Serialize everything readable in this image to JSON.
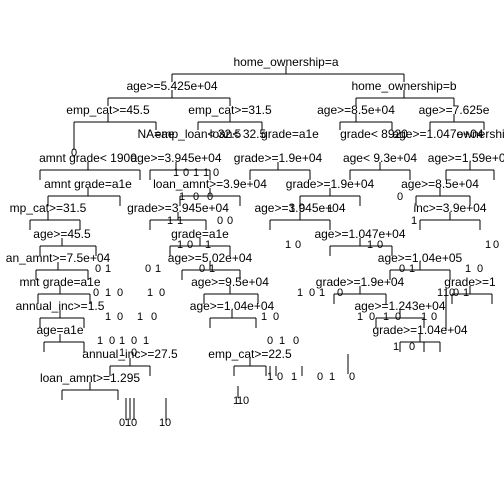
{
  "tree": {
    "nodes": [
      {
        "id": "n_root",
        "text": "home_ownership=a"
      },
      {
        "id": "n_L",
        "text": "age>=5.425e+04"
      },
      {
        "id": "n_R",
        "text": "home_ownership=b"
      },
      {
        "id": "n_LL",
        "text": "emp_cat>=45.5"
      },
      {
        "id": "n_LR",
        "text": "emp_cat>=31.5"
      },
      {
        "id": "n_RL",
        "text": "age>=8.5e+04"
      },
      {
        "id": "n_RR",
        "text": "age>=7.625e"
      },
      {
        "id": "n_LLR",
        "text": "NA=ae"
      },
      {
        "id": "n_LRL",
        "text": "emp_loan< 32.5"
      },
      {
        "id": "n_LRR",
        "text": "loan< 32.5"
      },
      {
        "id": "n_LRR2",
        "text": "grade=a1e"
      },
      {
        "id": "n_RLL",
        "text": "grade< 8920"
      },
      {
        "id": "n_RLR",
        "text": "age>=1.047e+04"
      },
      {
        "id": "n_RRL",
        "text": "ownership"
      },
      {
        "id": "n_r4a",
        "text": "amnt grade< 1900"
      },
      {
        "id": "n_r4b",
        "text": "age>=3.945e+04"
      },
      {
        "id": "n_r4c",
        "text": "grade>=1.9e+04"
      },
      {
        "id": "n_r4d",
        "text": "age< 9.3e+04"
      },
      {
        "id": "n_r4e",
        "text": "age>=1.59e+04"
      },
      {
        "id": "n_r5a",
        "text": "amnt grade=a1e"
      },
      {
        "id": "n_r5b",
        "text": "loan_amnt>=3.9e+04"
      },
      {
        "id": "n_r5c",
        "text": "grade>=1.9e+04"
      },
      {
        "id": "n_r5d",
        "text": "age>=8.5e+04"
      },
      {
        "id": "n_r6a",
        "text": "mp_cat>=31.5"
      },
      {
        "id": "n_r6b",
        "text": "grade>=3.945e+04"
      },
      {
        "id": "n_r6c",
        "text": "age>=3.945e+04"
      },
      {
        "id": "n_r6d",
        "text": "inc>=3.9e+04"
      },
      {
        "id": "n_r7a",
        "text": "age>=45.5"
      },
      {
        "id": "n_r7b",
        "text": "grade=a1e"
      },
      {
        "id": "n_r7c",
        "text": "age>=1.047e+04"
      },
      {
        "id": "n_r8a",
        "text": "an_amnt>=7.5e+04"
      },
      {
        "id": "n_r8b",
        "text": "age>=5.02e+04"
      },
      {
        "id": "n_r8c",
        "text": "age>=1.04e+05"
      },
      {
        "id": "n_r9a",
        "text": "mnt grade=a1e"
      },
      {
        "id": "n_r9b",
        "text": "age>=9.5e+04"
      },
      {
        "id": "n_r9c",
        "text": "grade>=1.9e+04"
      },
      {
        "id": "n_r9d",
        "text": "grade>=1"
      },
      {
        "id": "n_r10a",
        "text": "annual_inc>=1.5"
      },
      {
        "id": "n_r10b",
        "text": "age>=1.04e+04"
      },
      {
        "id": "n_r10c",
        "text": "age>=1.243e+04"
      },
      {
        "id": "n_r11a",
        "text": "age=a1e"
      },
      {
        "id": "n_r11b",
        "text": "grade>=1.04e+04"
      },
      {
        "id": "n_r12a",
        "text": "annual_inc>=27.5"
      },
      {
        "id": "n_r12b",
        "text": "emp_cat>=22.5"
      },
      {
        "id": "n_r13a",
        "text": "loan_amnt>=1.295"
      }
    ],
    "leaves": [
      "0",
      "1",
      "0",
      "1",
      "1",
      "0",
      "1",
      "0",
      "0",
      "1",
      "1",
      "0",
      "0",
      "1",
      "0",
      "1",
      "0",
      "1",
      "0",
      "1",
      "1",
      "0",
      "1",
      "0",
      "1",
      "0",
      "1",
      "0",
      "1",
      "0",
      "1",
      "0",
      "1",
      "0",
      "1",
      "0",
      "1",
      "0",
      "1",
      "0",
      "1",
      "0",
      "1",
      "0",
      "1",
      "0",
      "1",
      "0",
      "1",
      "0",
      "1",
      "0",
      "1",
      "0",
      "1",
      "0",
      "1",
      "0",
      "1",
      "0",
      "1",
      "0",
      "1",
      "0",
      "1",
      "0",
      "1",
      "0",
      "1",
      "0",
      "1",
      "0",
      "1",
      "0",
      "1",
      "0",
      "1",
      "0",
      "1",
      "0",
      "1",
      "0",
      "1",
      "0",
      "1",
      "0",
      "1",
      "0",
      "1"
    ]
  }
}
